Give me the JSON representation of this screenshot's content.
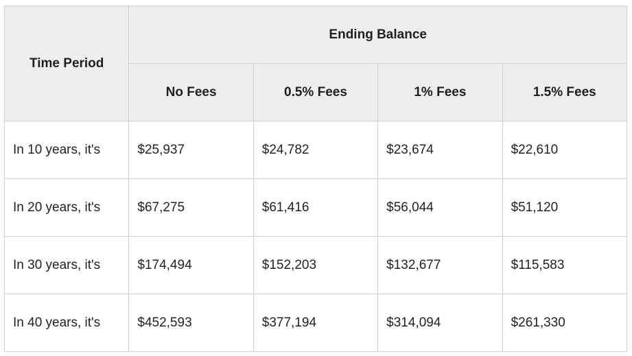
{
  "table": {
    "time_period_header": "Time Period",
    "group_header": "Ending Balance",
    "fee_headers": [
      "No Fees",
      "0.5% Fees",
      "1% Fees",
      "1.5% Fees"
    ],
    "rows": [
      {
        "period": "In 10 years, it's",
        "values": [
          "$25,937",
          "$24,782",
          "$23,674",
          "$22,610"
        ]
      },
      {
        "period": "In 20 years, it's",
        "values": [
          "$67,275",
          "$61,416",
          "$56,044",
          "$51,120"
        ]
      },
      {
        "period": "In 30 years, it's",
        "values": [
          "$174,494",
          "$152,203",
          "$132,677",
          "$115,583"
        ]
      },
      {
        "period": "In 40 years, it's",
        "values": [
          "$452,593",
          "$377,194",
          "$314,094",
          "$261,330"
        ]
      }
    ]
  },
  "colors": {
    "header_background": "#eeeeee",
    "border": "#cfcfcf",
    "text": "#1f1f1f"
  }
}
